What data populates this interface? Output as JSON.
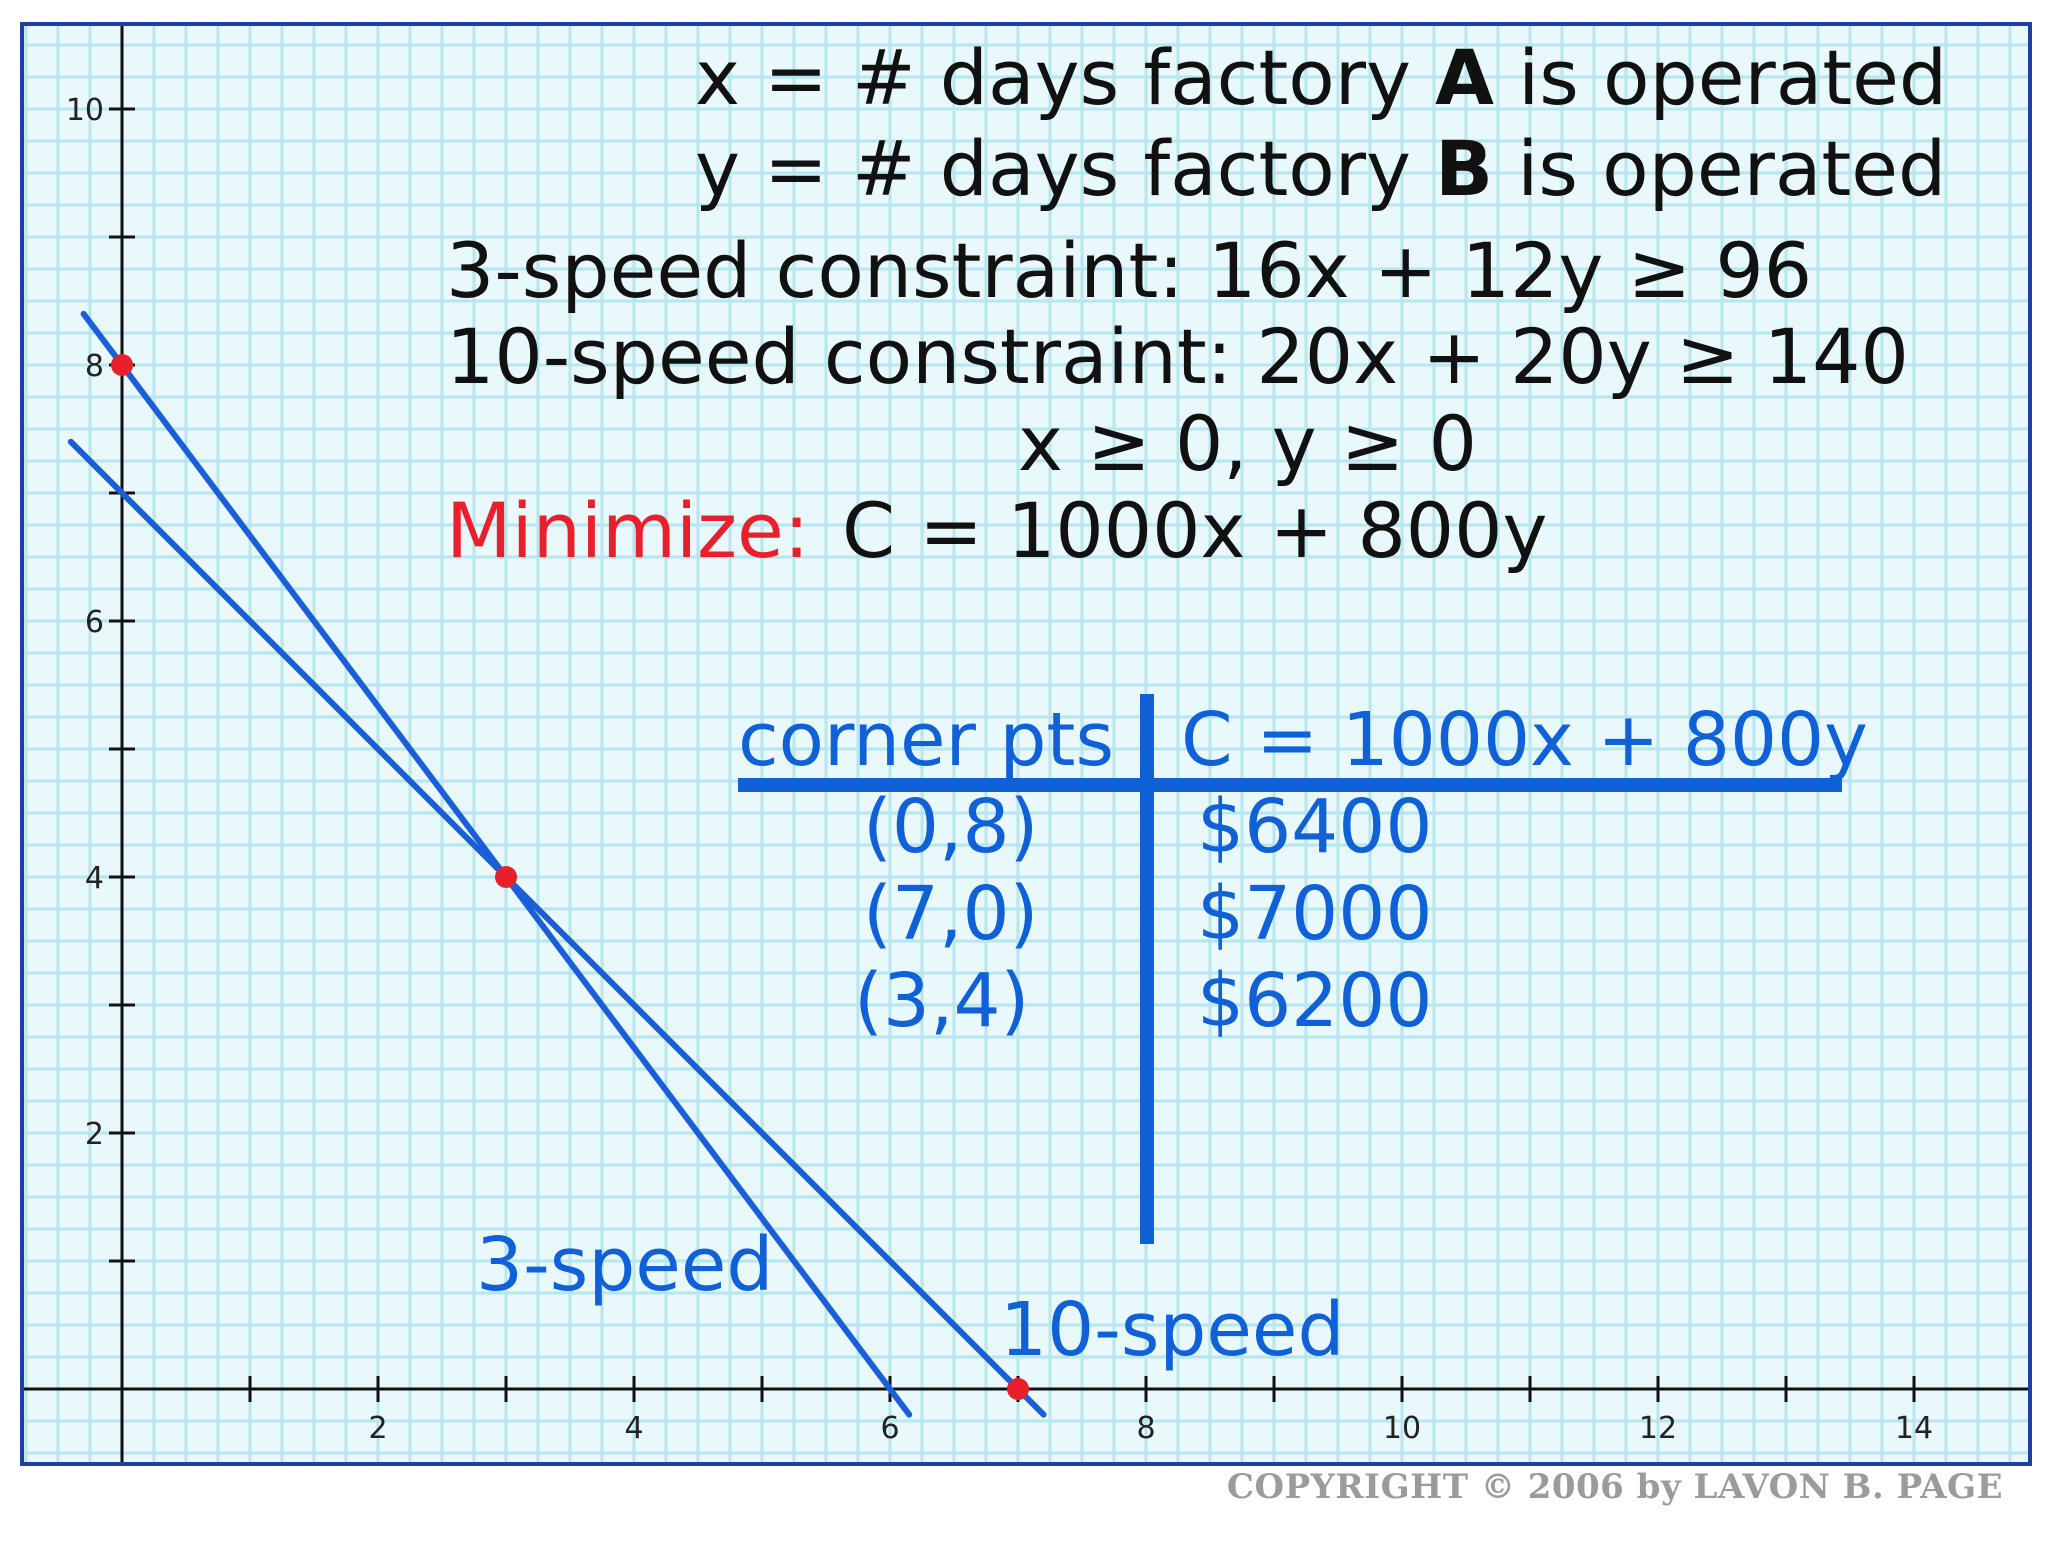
{
  "chart_data": {
    "type": "line",
    "title": "",
    "xlabel": "",
    "ylabel": "",
    "xlim": [
      -0.4,
      14.9
    ],
    "ylim": [
      -0.3,
      10.5
    ],
    "x_ticks": [
      0,
      1,
      2,
      3,
      4,
      5,
      6,
      7,
      8,
      9,
      10,
      11,
      12,
      13,
      14
    ],
    "x_tick_labels": [
      "2",
      "4",
      "6",
      "8",
      "10",
      "12",
      "14"
    ],
    "x_tick_label_values": [
      2,
      4,
      6,
      8,
      10,
      12,
      14
    ],
    "y_ticks": [
      1,
      2,
      3,
      4,
      5,
      6,
      7,
      8,
      9,
      10
    ],
    "y_tick_labels": [
      "2",
      "4",
      "6",
      "8",
      "10"
    ],
    "y_tick_label_values": [
      2,
      4,
      6,
      8,
      10
    ],
    "grid": true,
    "series": [
      {
        "name": "3-speed",
        "color": "#1a5fd8",
        "points": [
          [
            -0.3,
            8.4
          ],
          [
            6.15,
            -0.2
          ]
        ]
      },
      {
        "name": "10-speed",
        "color": "#1a5fd8",
        "points": [
          [
            -0.4,
            7.4
          ],
          [
            7.2,
            -0.2
          ]
        ]
      }
    ],
    "corner_points": [
      {
        "x": 0,
        "y": 8,
        "color": "#e8202e"
      },
      {
        "x": 3,
        "y": 4,
        "color": "#e8202e"
      },
      {
        "x": 7,
        "y": 0,
        "color": "#e8202e"
      }
    ],
    "annotations": {
      "line_label_3speed": "3-speed",
      "line_label_10speed": "10-speed"
    }
  },
  "equations": {
    "line1": {
      "prefix": "x = # days factory ",
      "bold": "A",
      "suffix": " is operated"
    },
    "line2": {
      "prefix": "y = # days factory ",
      "bold": "B",
      "suffix": " is operated"
    },
    "line3": "3-speed constraint: 16x + 12y ≥ 96",
    "line4": "10-speed constraint: 20x + 20y ≥ 140",
    "line5": "x ≥ 0, y ≥ 0",
    "minimize_label": "Minimize:",
    "objective": "C = 1000x + 800y"
  },
  "table": {
    "header_left": "corner pts",
    "header_right": "C = 1000x + 800y",
    "rows": [
      {
        "point": "(0,8)",
        "cost": "$6400"
      },
      {
        "point": "(7,0)",
        "cost": "$7000"
      },
      {
        "point": "(3,4)",
        "cost": "$6200"
      }
    ]
  },
  "copyright": "COPYRIGHT © 2006 by LAVON B. PAGE",
  "colors": {
    "background": "#e9f8fb",
    "grid": "#b6e6ef",
    "border": "#1c3fa8",
    "axis": "#111111",
    "line": "#1a5fd8",
    "table": "#1060d8",
    "dot": "#e8202e"
  }
}
